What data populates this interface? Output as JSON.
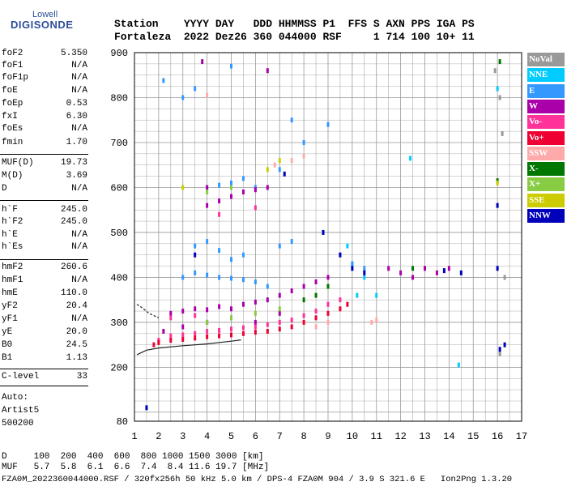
{
  "logo": {
    "line1": "Lowell",
    "line2": "DIGISONDE"
  },
  "header": {
    "row1": "Station    YYYY DAY   DDD HHMMSS P1  FFS S AXN PPS IGA PS",
    "row2": "Fortaleza  2022 Dez26 360 044000 RSF     1 714 100 10+ 11"
  },
  "params": [
    {
      "name": "foF2",
      "value": "5.350"
    },
    {
      "name": "foF1",
      "value": "N/A"
    },
    {
      "name": "foF1p",
      "value": "N/A"
    },
    {
      "name": "foE",
      "value": "N/A"
    },
    {
      "name": "foEp",
      "value": "0.53"
    },
    {
      "name": "fxI",
      "value": "6.30"
    },
    {
      "name": "foEs",
      "value": "N/A"
    },
    {
      "name": "fmin",
      "value": "1.70"
    },
    {
      "name": "MUF(D)",
      "value": "19.73"
    },
    {
      "name": "M(D)",
      "value": "3.69"
    },
    {
      "name": "D",
      "value": "N/A"
    },
    {
      "name": "h`F",
      "value": "245.0"
    },
    {
      "name": "h`F2",
      "value": "245.0"
    },
    {
      "name": "h`E",
      "value": "N/A"
    },
    {
      "name": "h`Es",
      "value": "N/A"
    },
    {
      "name": "hmF2",
      "value": "260.6"
    },
    {
      "name": "hmF1",
      "value": "N/A"
    },
    {
      "name": "hmE",
      "value": "110.0"
    },
    {
      "name": "yF2",
      "value": "20.4"
    },
    {
      "name": "yF1",
      "value": "N/A"
    },
    {
      "name": "yE",
      "value": "20.0"
    },
    {
      "name": "B0",
      "value": "24.5"
    },
    {
      "name": "B1",
      "value": "1.13"
    },
    {
      "name": "C-level",
      "value": "33"
    }
  ],
  "auto": {
    "line1": "Auto:",
    "line2": "Artist5",
    "line3": "500200"
  },
  "footer": {
    "d_row": "D     100  200  400  600  800 1000 1500 3000 [km]",
    "muf_row": "MUF   5.7  5.8  6.1  6.6  7.4  8.4 11.6 19.7 [MHz]",
    "info_row": "FZA0M_2022360044000.RSF / 320fx256h 50 kHz 5.0 km / DPS-4 FZA0M 904 / 3.9 S 321.6 E   Ion2Png 1.3.20"
  },
  "legend": [
    {
      "label": "NoVal",
      "color": "#999999",
      "text_color": "#ffffff"
    },
    {
      "label": "NNE",
      "color": "#00ccff",
      "text_color": "#ffffff"
    },
    {
      "label": "E",
      "color": "#3399ff",
      "text_color": "#ffffff"
    },
    {
      "label": "W",
      "color": "#aa00aa",
      "text_color": "#ffffff"
    },
    {
      "label": "Vo-",
      "color": "#ff3399",
      "text_color": "#ffffff"
    },
    {
      "label": "Vo+",
      "color": "#ee0033",
      "text_color": "#ffffff"
    },
    {
      "label": "SSW",
      "color": "#ffaaaa",
      "text_color": "#ffffff"
    },
    {
      "label": "X-",
      "color": "#007700",
      "text_color": "#ffffff"
    },
    {
      "label": "X+",
      "color": "#88cc44",
      "text_color": "#ffffff"
    },
    {
      "label": "SSE",
      "color": "#cccc00",
      "text_color": "#ffffff"
    },
    {
      "label": "NNW",
      "color": "#0000bb",
      "text_color": "#ffffff"
    }
  ],
  "chart_data": {
    "type": "scatter",
    "title": "",
    "xlabel": "",
    "ylabel": "",
    "xlim": [
      1,
      17
    ],
    "ylim": [
      80,
      900
    ],
    "x_ticks": [
      1,
      2,
      3,
      4,
      5,
      6,
      7,
      8,
      9,
      10,
      11,
      12,
      13,
      14,
      15,
      16,
      17
    ],
    "y_ticks": [
      80,
      200,
      300,
      400,
      500,
      600,
      700,
      800,
      900
    ],
    "grid": true,
    "series": [
      {
        "name": "NoVal",
        "points": [
          [
            16.1,
            800
          ],
          [
            15.9,
            860
          ],
          [
            16.2,
            720
          ],
          [
            16.3,
            400
          ],
          [
            16.1,
            230
          ]
        ]
      },
      {
        "name": "NNE",
        "points": [
          [
            9.8,
            470
          ],
          [
            10.0,
            430
          ],
          [
            10.2,
            360
          ],
          [
            10.5,
            400
          ],
          [
            11.0,
            360
          ],
          [
            14.4,
            205
          ],
          [
            16.0,
            820
          ],
          [
            12.4,
            665
          ]
        ]
      },
      {
        "name": "E",
        "points": [
          [
            3.5,
            470
          ],
          [
            4.0,
            480
          ],
          [
            4.5,
            460
          ],
          [
            5.0,
            440
          ],
          [
            5.5,
            450
          ],
          [
            3.0,
            400
          ],
          [
            3.5,
            410
          ],
          [
            4.0,
            405
          ],
          [
            4.5,
            400
          ],
          [
            5.0,
            398
          ],
          [
            5.5,
            395
          ],
          [
            6.0,
            390
          ],
          [
            6.5,
            380
          ],
          [
            7.0,
            470
          ],
          [
            7.5,
            480
          ],
          [
            4.0,
            600
          ],
          [
            4.5,
            605
          ],
          [
            5.0,
            610
          ],
          [
            5.5,
            620
          ],
          [
            6.0,
            600
          ],
          [
            7.0,
            640
          ],
          [
            8.0,
            700
          ],
          [
            2.2,
            838
          ],
          [
            3.0,
            800
          ],
          [
            3.5,
            820
          ],
          [
            5.0,
            870
          ],
          [
            7.5,
            750
          ],
          [
            9.0,
            740
          ],
          [
            10.0,
            430
          ],
          [
            10.5,
            420
          ]
        ]
      },
      {
        "name": "W",
        "points": [
          [
            2.5,
            320
          ],
          [
            3.0,
            325
          ],
          [
            3.5,
            330
          ],
          [
            4.0,
            328
          ],
          [
            4.5,
            335
          ],
          [
            5.0,
            330
          ],
          [
            5.5,
            340
          ],
          [
            6.0,
            345
          ],
          [
            6.5,
            350
          ],
          [
            7.0,
            360
          ],
          [
            7.5,
            370
          ],
          [
            8.0,
            380
          ],
          [
            8.5,
            390
          ],
          [
            9.0,
            400
          ],
          [
            2.2,
            280
          ],
          [
            3.0,
            290
          ],
          [
            4.0,
            300
          ],
          [
            5.0,
            310
          ],
          [
            6.0,
            300
          ],
          [
            7.0,
            320
          ],
          [
            4.0,
            560
          ],
          [
            4.5,
            570
          ],
          [
            5.0,
            580
          ],
          [
            5.5,
            590
          ],
          [
            6.0,
            595
          ],
          [
            6.5,
            600
          ],
          [
            3.8,
            880
          ],
          [
            4.0,
            600
          ],
          [
            11.5,
            420
          ],
          [
            12.0,
            410
          ],
          [
            12.5,
            400
          ],
          [
            13.0,
            420
          ],
          [
            13.5,
            410
          ],
          [
            14.0,
            420
          ],
          [
            6.5,
            860
          ]
        ]
      },
      {
        "name": "Vo-",
        "points": [
          [
            2.0,
            260
          ],
          [
            2.5,
            270
          ],
          [
            3.0,
            272
          ],
          [
            3.5,
            275
          ],
          [
            4.0,
            280
          ],
          [
            4.5,
            282
          ],
          [
            5.0,
            285
          ],
          [
            5.5,
            288
          ],
          [
            6.0,
            290
          ],
          [
            6.5,
            295
          ],
          [
            7.0,
            300
          ],
          [
            7.5,
            305
          ],
          [
            8.0,
            315
          ],
          [
            8.5,
            325
          ],
          [
            9.0,
            340
          ],
          [
            9.5,
            350
          ],
          [
            2.5,
            310
          ],
          [
            3.5,
            315
          ],
          [
            6.0,
            555
          ],
          [
            4.5,
            540
          ]
        ]
      },
      {
        "name": "Vo+",
        "points": [
          [
            1.8,
            250
          ],
          [
            2.0,
            255
          ],
          [
            2.5,
            260
          ],
          [
            3.0,
            262
          ],
          [
            3.5,
            265
          ],
          [
            4.0,
            268
          ],
          [
            4.5,
            270
          ],
          [
            5.0,
            272
          ],
          [
            5.5,
            275
          ],
          [
            6.0,
            278
          ],
          [
            6.5,
            280
          ],
          [
            7.0,
            285
          ],
          [
            7.5,
            290
          ],
          [
            8.0,
            300
          ],
          [
            8.5,
            310
          ],
          [
            9.0,
            320
          ],
          [
            9.5,
            330
          ],
          [
            9.8,
            340
          ]
        ]
      },
      {
        "name": "SSW",
        "points": [
          [
            6.8,
            650
          ],
          [
            7.5,
            660
          ],
          [
            8.0,
            670
          ],
          [
            4.0,
            805
          ],
          [
            8.5,
            290
          ],
          [
            9.0,
            300
          ],
          [
            10.8,
            300
          ],
          [
            11.0,
            305
          ]
        ]
      },
      {
        "name": "X-",
        "points": [
          [
            8.0,
            350
          ],
          [
            8.5,
            360
          ],
          [
            9.0,
            380
          ],
          [
            12.5,
            420
          ],
          [
            16.1,
            880
          ],
          [
            16.0,
            615
          ]
        ]
      },
      {
        "name": "X+",
        "points": [
          [
            4.0,
            300
          ],
          [
            5.0,
            310
          ],
          [
            6.0,
            320
          ],
          [
            7.0,
            330
          ],
          [
            4.0,
            590
          ],
          [
            5.0,
            600
          ]
        ]
      },
      {
        "name": "SSE",
        "points": [
          [
            6.5,
            640
          ],
          [
            7.0,
            660
          ],
          [
            3.0,
            600
          ],
          [
            16.0,
            610
          ]
        ]
      },
      {
        "name": "NNW",
        "points": [
          [
            1.5,
            110
          ],
          [
            3.5,
            450
          ],
          [
            7.2,
            630
          ],
          [
            8.8,
            500
          ],
          [
            9.5,
            450
          ],
          [
            10.0,
            420
          ],
          [
            10.5,
            410
          ],
          [
            13.8,
            415
          ],
          [
            14.5,
            410
          ],
          [
            16.0,
            560
          ],
          [
            16.0,
            420
          ],
          [
            16.1,
            240
          ],
          [
            16.3,
            250
          ]
        ]
      }
    ],
    "profile_lines": [
      {
        "name": "virtual-height-trace",
        "points": [
          [
            1.1,
            228
          ],
          [
            1.5,
            238
          ],
          [
            2.0,
            243
          ],
          [
            3.0,
            248
          ],
          [
            4.0,
            252
          ],
          [
            5.0,
            258
          ],
          [
            5.4,
            261
          ]
        ]
      },
      {
        "name": "virtual-height-trace-upper",
        "points": [
          [
            1.1,
            340
          ],
          [
            1.3,
            333
          ],
          [
            1.6,
            320
          ],
          [
            2.0,
            310
          ]
        ]
      }
    ]
  }
}
